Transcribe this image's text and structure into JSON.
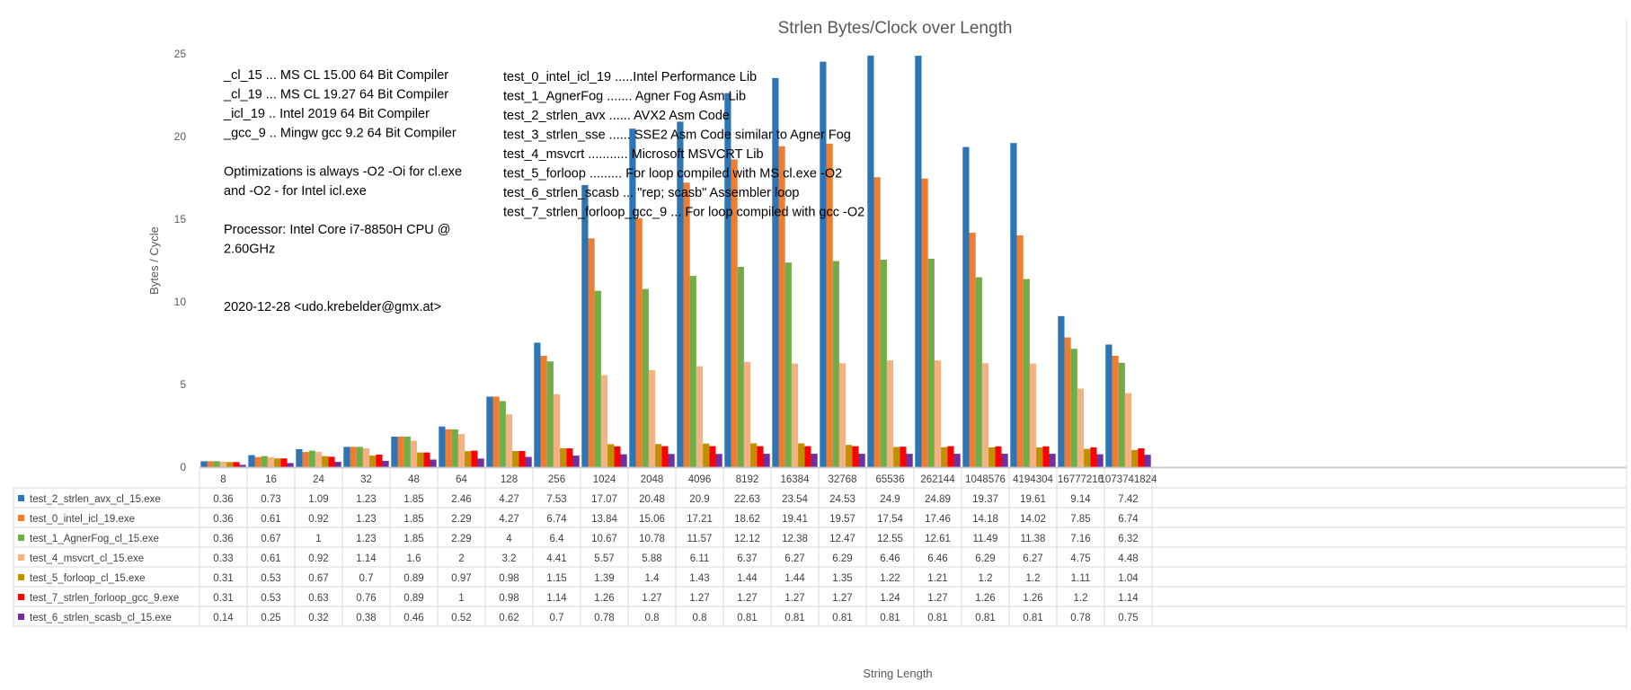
{
  "chart_data": {
    "type": "bar",
    "title": "Strlen Bytes/Clock over Length",
    "xlabel": "String Length",
    "ylabel": "Bytes / Cycle",
    "ylim": [
      0,
      25
    ],
    "yticks": [
      0,
      5,
      10,
      15,
      20,
      25
    ],
    "grid": false,
    "legend": "data-table",
    "categories": [
      "8",
      "16",
      "24",
      "32",
      "48",
      "64",
      "128",
      "256",
      "1024",
      "2048",
      "4096",
      "8192",
      "16384",
      "32768",
      "65536",
      "262144",
      "1048576",
      "4194304",
      "16777216",
      "1073741824"
    ],
    "series": [
      {
        "name": "test_2_strlen_avx_cl_15.exe",
        "color": "#2E75B6",
        "values": [
          0.36,
          0.73,
          1.09,
          1.23,
          1.85,
          2.46,
          4.27,
          7.53,
          17.07,
          20.48,
          20.9,
          22.63,
          23.54,
          24.53,
          24.9,
          24.89,
          19.37,
          19.61,
          9.14,
          7.42
        ]
      },
      {
        "name": "test_0_intel_icl_19.exe",
        "color": "#ED7D31",
        "values": [
          0.36,
          0.61,
          0.92,
          1.23,
          1.85,
          2.29,
          4.27,
          6.74,
          13.84,
          15.06,
          17.21,
          18.62,
          19.41,
          19.57,
          17.54,
          17.46,
          14.18,
          14.02,
          7.85,
          6.74
        ]
      },
      {
        "name": "test_1_AgnerFog_cl_15.exe",
        "color": "#70AD47",
        "values": [
          0.36,
          0.67,
          1,
          1.23,
          1.85,
          2.29,
          4,
          6.4,
          10.67,
          10.78,
          11.57,
          12.12,
          12.38,
          12.47,
          12.55,
          12.61,
          11.49,
          11.38,
          7.16,
          6.32
        ]
      },
      {
        "name": "test_4_msvcrt_cl_15.exe",
        "color": "#F4B183",
        "values": [
          0.33,
          0.61,
          0.92,
          1.14,
          1.6,
          2,
          3.2,
          4.41,
          5.57,
          5.88,
          6.11,
          6.37,
          6.27,
          6.29,
          6.46,
          6.46,
          6.29,
          6.27,
          4.75,
          4.48
        ]
      },
      {
        "name": "test_5_forloop_cl_15.exe",
        "color": "#BF9000",
        "values": [
          0.31,
          0.53,
          0.67,
          0.7,
          0.89,
          0.97,
          0.98,
          1.15,
          1.39,
          1.4,
          1.43,
          1.44,
          1.44,
          1.35,
          1.22,
          1.21,
          1.2,
          1.2,
          1.11,
          1.04
        ]
      },
      {
        "name": "test_7_strlen_forloop_gcc_9.exe",
        "color": "#FF0000",
        "values": [
          0.31,
          0.53,
          0.63,
          0.76,
          0.89,
          1,
          0.98,
          1.14,
          1.26,
          1.27,
          1.27,
          1.27,
          1.27,
          1.27,
          1.24,
          1.27,
          1.26,
          1.26,
          1.2,
          1.14
        ]
      },
      {
        "name": "test_6_strlen_scasb_cl_15.exe",
        "color": "#7030A0",
        "values": [
          0.14,
          0.25,
          0.32,
          0.38,
          0.46,
          0.52,
          0.62,
          0.7,
          0.78,
          0.8,
          0.8,
          0.81,
          0.81,
          0.81,
          0.81,
          0.81,
          0.81,
          0.81,
          0.78,
          0.75
        ]
      }
    ]
  },
  "annotations": {
    "left": [
      "_cl_15 ... MS CL 15.00 64 Bit Compiler",
      "_cl_19 ... MS CL 19.27 64 Bit Compiler",
      "_icl_19 .. Intel 2019 64 Bit Compiler",
      "_gcc_9 .. Mingw gcc 9.2 64 Bit Compiler",
      "",
      "Optimizations is always -O2 -Oi for cl.exe",
      " and -O2 - for Intel icl.exe",
      "",
      "Processor: Intel Core i7-8850H CPU @",
      "2.60GHz",
      "",
      "",
      "2020-12-28  <udo.krebelder@gmx.at>"
    ],
    "right": [
      "test_0_intel_icl_19 .....Intel Performance Lib",
      "test_1_AgnerFog ....... Agner Fog Asm Lib",
      "test_2_strlen_avx ...... AVX2 Asm Code",
      "test_3_strlen_sse ...... SSE2 Asm Code similar to Agner Fog",
      "test_4_msvcrt ........... Microsoft MSVCRT Lib",
      "test_5_forloop ......... For loop compiled with MS cl.exe -O2",
      "test_6_strlen_scasb ... \"rep; scasb\" Assembler loop",
      "test_7_strlen_forloop_gcc_9 ... For loop compiled with gcc -O2"
    ]
  }
}
